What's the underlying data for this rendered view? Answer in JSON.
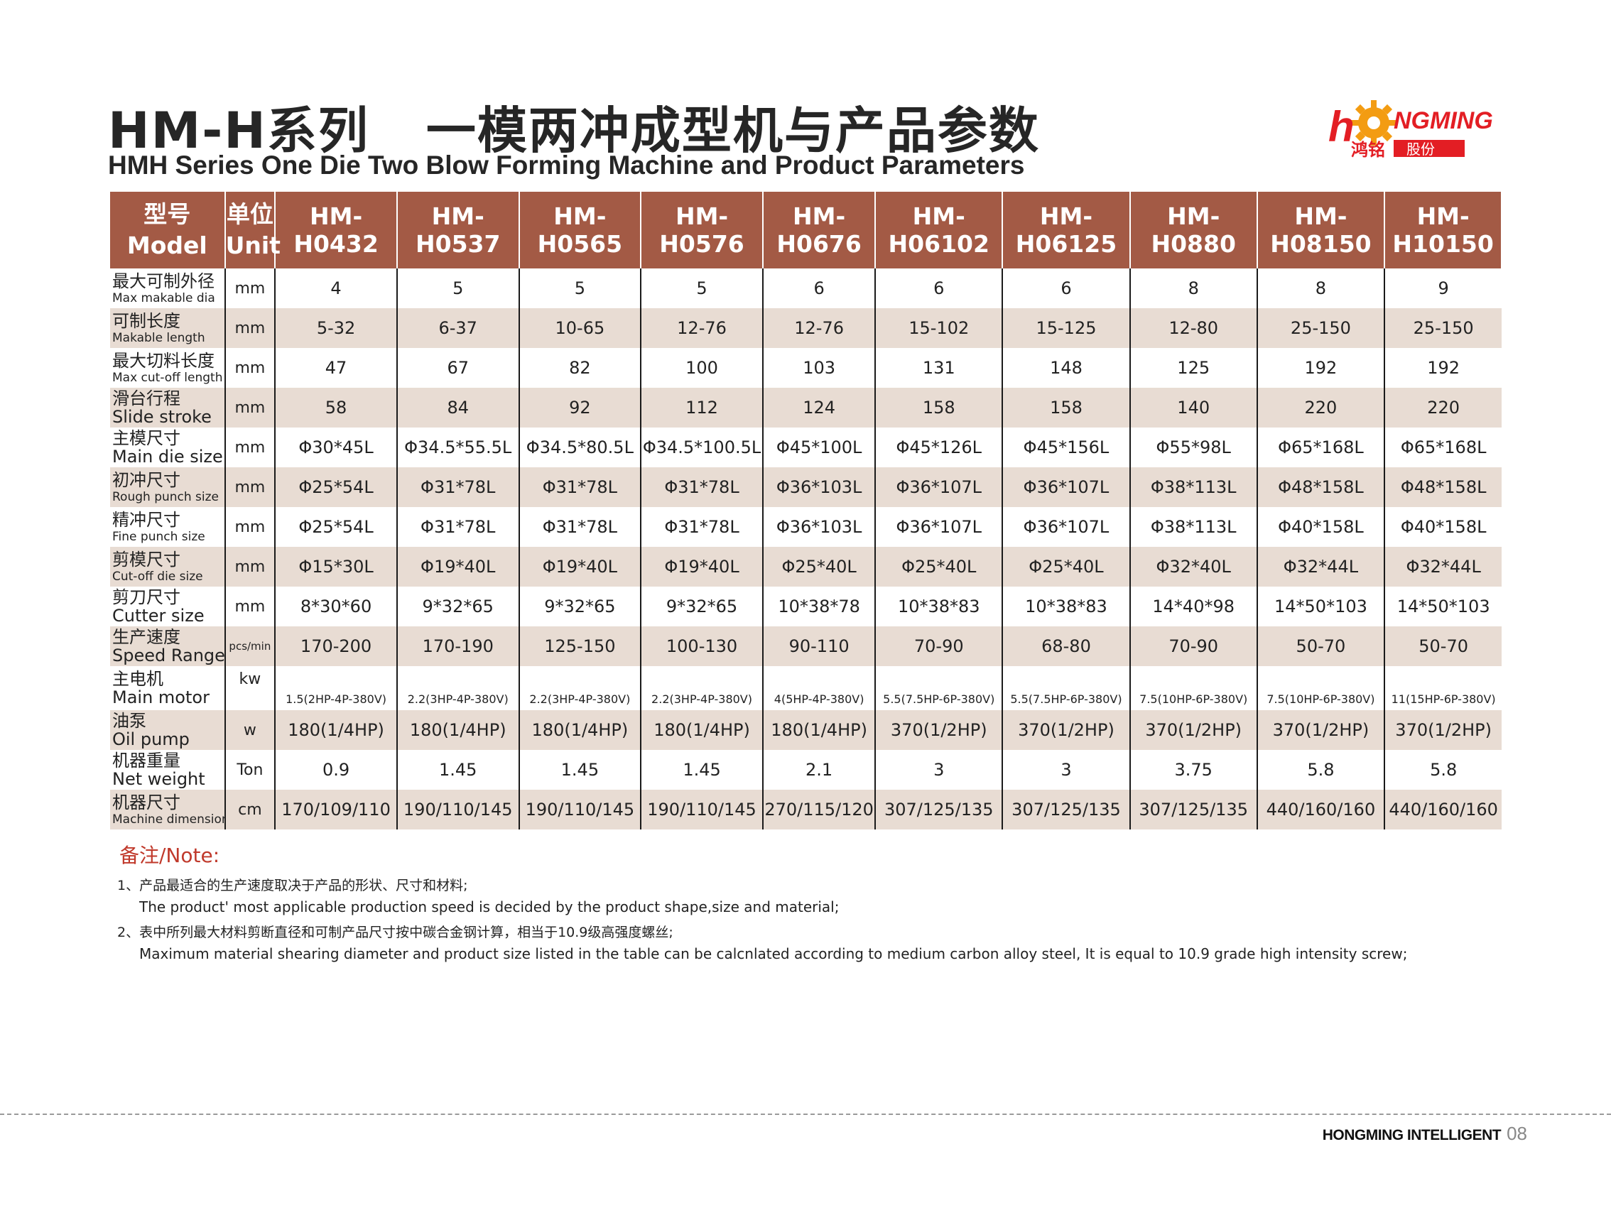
{
  "header": {
    "title_cn_a": "HM-H系列",
    "title_cn_b": "一模两冲成型机与产品参数",
    "title_en": "HMH Series One Die Two Blow Forming Machine and Product Parameters"
  },
  "logo": {
    "text_en": "HONGMING",
    "text_cn": "鸿铭股份",
    "colors": {
      "red": "#e31e24",
      "gear": "#f39c12"
    }
  },
  "table": {
    "colors": {
      "header_bg": "#a35a45",
      "alt_row_bg": "#e8dcd3"
    },
    "header": {
      "model_cn": "型号",
      "model_en": "Model",
      "unit_cn": "单位",
      "unit_en": "Unit",
      "models": [
        "HM-H0432",
        "HM-H0537",
        "HM-H0565",
        "HM-H0576",
        "HM-H0676",
        "HM-H06102",
        "HM-H06125",
        "HM-H0880",
        "HM-H08150",
        "HM-H10150"
      ]
    },
    "rows": [
      {
        "label_cn": "最大可制外径",
        "label_en": "Max makable dia",
        "unit": "mm",
        "values": [
          "4",
          "5",
          "5",
          "5",
          "6",
          "6",
          "6",
          "8",
          "8",
          "9"
        ]
      },
      {
        "label_cn": "可制长度",
        "label_en": "Makable length",
        "unit": "mm",
        "values": [
          "5-32",
          "6-37",
          "10-65",
          "12-76",
          "12-76",
          "15-102",
          "15-125",
          "12-80",
          "25-150",
          "25-150"
        ]
      },
      {
        "label_cn": "最大切料长度",
        "label_en": "Max cut-off length",
        "unit": "mm",
        "values": [
          "47",
          "67",
          "82",
          "100",
          "103",
          "131",
          "148",
          "125",
          "192",
          "192"
        ]
      },
      {
        "label_cn": "滑台行程",
        "label_en": "Slide stroke",
        "unit": "mm",
        "values": [
          "58",
          "84",
          "92",
          "112",
          "124",
          "158",
          "158",
          "140",
          "220",
          "220"
        ]
      },
      {
        "label_cn": "主模尺寸",
        "label_en": "Main die size",
        "unit": "mm",
        "values": [
          "Φ30*45L",
          "Φ34.5*55.5L",
          "Φ34.5*80.5L",
          "Φ34.5*100.5L",
          "Φ45*100L",
          "Φ45*126L",
          "Φ45*156L",
          "Φ55*98L",
          "Φ65*168L",
          "Φ65*168L"
        ]
      },
      {
        "label_cn": "初冲尺寸",
        "label_en": "Rough punch size",
        "unit": "mm",
        "values": [
          "Φ25*54L",
          "Φ31*78L",
          "Φ31*78L",
          "Φ31*78L",
          "Φ36*103L",
          "Φ36*107L",
          "Φ36*107L",
          "Φ38*113L",
          "Φ48*158L",
          "Φ48*158L"
        ]
      },
      {
        "label_cn": "精冲尺寸",
        "label_en": "Fine punch size",
        "unit": "mm",
        "values": [
          "Φ25*54L",
          "Φ31*78L",
          "Φ31*78L",
          "Φ31*78L",
          "Φ36*103L",
          "Φ36*107L",
          "Φ36*107L",
          "Φ38*113L",
          "Φ40*158L",
          "Φ40*158L"
        ]
      },
      {
        "label_cn": "剪模尺寸",
        "label_en": "Cut-off die size",
        "unit": "mm",
        "values": [
          "Φ15*30L",
          "Φ19*40L",
          "Φ19*40L",
          "Φ19*40L",
          "Φ25*40L",
          "Φ25*40L",
          "Φ25*40L",
          "Φ32*40L",
          "Φ32*44L",
          "Φ32*44L"
        ]
      },
      {
        "label_cn": "剪刀尺寸",
        "label_en": "Cutter size",
        "unit": "mm",
        "values": [
          "8*30*60",
          "9*32*65",
          "9*32*65",
          "9*32*65",
          "10*38*78",
          "10*38*83",
          "10*38*83",
          "14*40*98",
          "14*50*103",
          "14*50*103"
        ]
      },
      {
        "label_cn": "生产速度",
        "label_en": "Speed Range",
        "unit": "pcs/min",
        "values": [
          "170-200",
          "170-190",
          "125-150",
          "100-130",
          "90-110",
          "70-90",
          "68-80",
          "70-90",
          "50-70",
          "50-70"
        ]
      },
      {
        "label_cn": "主电机",
        "label_en": "Main motor",
        "unit": "kw",
        "values": [
          "1.5(2HP-4P-380V)",
          "2.2(3HP-4P-380V)",
          "2.2(3HP-4P-380V)",
          "2.2(3HP-4P-380V)",
          "4(5HP-4P-380V)",
          "5.5(7.5HP-6P-380V)",
          "5.5(7.5HP-6P-380V)",
          "7.5(10HP-6P-380V)",
          "7.5(10HP-6P-380V)",
          "11(15HP-6P-380V)"
        ]
      },
      {
        "label_cn": "油泵",
        "label_en": "Oil pump",
        "unit": "w",
        "values": [
          "180(1/4HP)",
          "180(1/4HP)",
          "180(1/4HP)",
          "180(1/4HP)",
          "180(1/4HP)",
          "370(1/2HP)",
          "370(1/2HP)",
          "370(1/2HP)",
          "370(1/2HP)",
          "370(1/2HP)"
        ]
      },
      {
        "label_cn": "机器重量",
        "label_en": "Net weight",
        "unit": "Ton",
        "values": [
          "0.9",
          "1.45",
          "1.45",
          "1.45",
          "2.1",
          "3",
          "3",
          "3.75",
          "5.8",
          "5.8"
        ]
      },
      {
        "label_cn": "机器尺寸",
        "label_en": "Machine dimension",
        "unit": "cm",
        "values": [
          "170/109/110",
          "190/110/145",
          "190/110/145",
          "190/110/145",
          "270/115/120",
          "307/125/135",
          "307/125/135",
          "307/125/135",
          "440/160/160",
          "440/160/160"
        ]
      }
    ]
  },
  "notes": {
    "title": "备注/Note:",
    "items": [
      {
        "cn": "1、产品最适合的生产速度取决于产品的形状、尺寸和材料;",
        "en": "The product' most applicable production speed is decided by the product shape,size and material;"
      },
      {
        "cn": "2、表中所列最大材料剪断直径和可制产品尺寸按中碳合金钢计算，相当于10.9级高强度螺丝;",
        "en": "Maximum material shearing diameter and product size listed in the table can be calcnlated according to medium carbon alloy steel, It is equal to 10.9 grade high intensity screw;"
      }
    ]
  },
  "footer": {
    "brand": "HONGMING INTELLIGENT",
    "page": "08"
  }
}
